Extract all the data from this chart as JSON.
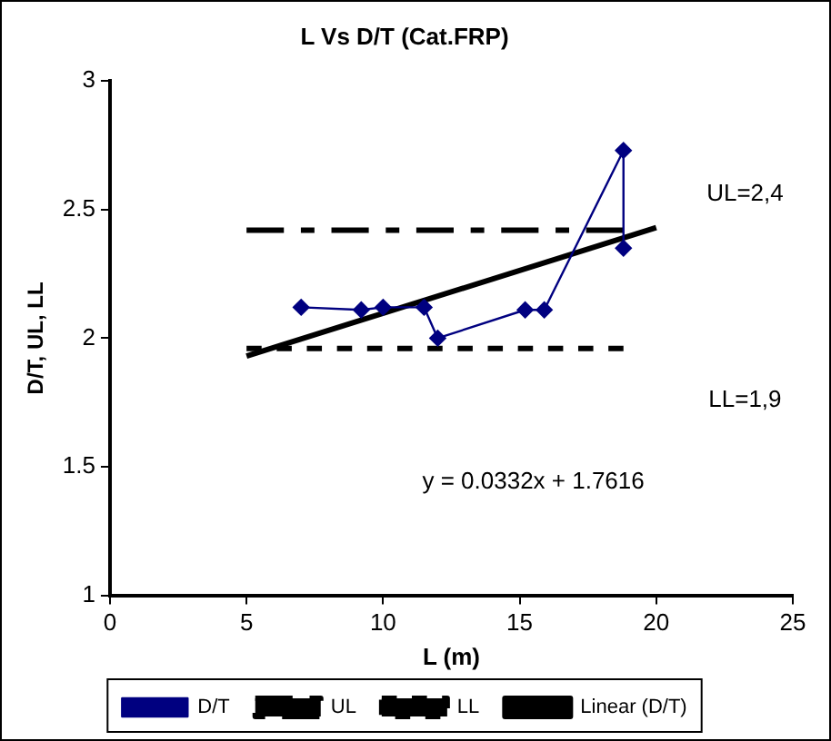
{
  "chart_data": {
    "type": "line",
    "title": "L Vs D/T (Cat.FRP)",
    "xlabel": "L (m)",
    "ylabel": "D/T, UL, LL",
    "xlim": [
      0,
      25
    ],
    "xticks": [
      0,
      5,
      10,
      15,
      20,
      25
    ],
    "ylim": [
      1,
      3
    ],
    "yticks": [
      1,
      1.5,
      2,
      2.5,
      3
    ],
    "grid": false,
    "legend": "bottom",
    "series": [
      {
        "name": "D/T",
        "color": "#000080",
        "marker": "diamond",
        "line_style": "solid",
        "x": [
          7.0,
          9.2,
          10.0,
          11.5,
          12.0,
          15.2,
          15.9,
          18.8,
          18.8
        ],
        "values": [
          2.12,
          2.11,
          2.12,
          2.12,
          2.0,
          2.11,
          2.11,
          2.73,
          2.35
        ]
      },
      {
        "name": "UL",
        "color": "#000000",
        "marker": "none",
        "line_style": "dashed",
        "x": [
          5,
          18.8
        ],
        "values": [
          2.42,
          2.42
        ]
      },
      {
        "name": "LL",
        "color": "#000000",
        "marker": "none",
        "line_style": "dotted",
        "x": [
          5,
          18.8
        ],
        "values": [
          1.96,
          1.96
        ]
      },
      {
        "name": "Linear (D/T)",
        "color": "#000000",
        "marker": "none",
        "line_style": "solid",
        "x": [
          5,
          20
        ],
        "values": [
          1.93,
          2.43
        ]
      }
    ],
    "annotations": [
      "UL=2,4",
      "LL=1,9",
      "y = 0.0332x + 1.7616"
    ]
  }
}
